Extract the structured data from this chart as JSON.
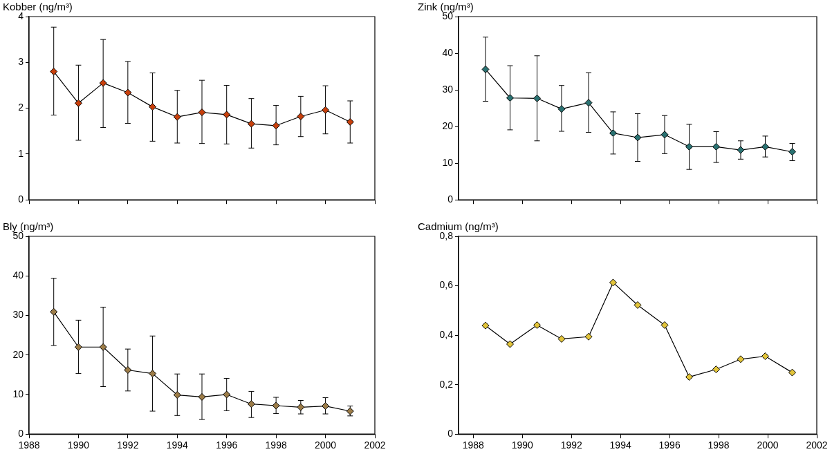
{
  "chart_data": [
    {
      "type": "line",
      "title": "Kobber (ng/m³)",
      "x": [
        1989,
        1990,
        1991,
        1992,
        1993,
        1994,
        1995,
        1996,
        1997,
        1998,
        1999,
        2000,
        2001
      ],
      "xlim": [
        1988,
        2002
      ],
      "xticks": [
        1988,
        1990,
        1992,
        1994,
        1996,
        1998,
        2000,
        2002
      ],
      "ylim": [
        0,
        4
      ],
      "yticks": [
        0,
        1,
        2,
        3,
        4
      ],
      "tick_labels": "y",
      "marker": "diamond",
      "line_style": "solid",
      "series": [
        {
          "color": "#c8400c",
          "values": [
            2.8,
            2.11,
            2.55,
            2.34,
            2.03,
            1.81,
            1.91,
            1.86,
            1.66,
            1.62,
            1.82,
            1.96,
            1.7
          ],
          "errors": [
            [
              1.85,
              3.77
            ],
            [
              1.3,
              2.94
            ],
            [
              1.58,
              3.5
            ],
            [
              1.67,
              3.02
            ],
            [
              1.28,
              2.77
            ],
            [
              1.24,
              2.39
            ],
            [
              1.23,
              2.61
            ],
            [
              1.22,
              2.5
            ],
            [
              1.13,
              2.21
            ],
            [
              1.2,
              2.06
            ],
            [
              1.38,
              2.26
            ],
            [
              1.44,
              2.49
            ],
            [
              1.24,
              2.16
            ]
          ]
        }
      ]
    },
    {
      "type": "line",
      "title": "Zink (ng/m³)",
      "x": [
        1988.5,
        1989.5,
        1990.6,
        1991.6,
        1992.7,
        1993.7,
        1994.7,
        1995.8,
        1996.8,
        1997.9,
        1998.9,
        1999.9,
        2001.0
      ],
      "xlim": [
        1987.4,
        2002
      ],
      "xticks": [
        1988,
        1990,
        1992,
        1994,
        1996,
        1998,
        2000,
        2002
      ],
      "ylim": [
        0,
        50
      ],
      "yticks": [
        0,
        10,
        20,
        30,
        40,
        50
      ],
      "tick_labels": "y",
      "marker": "diamond",
      "line_style": "solid",
      "series": [
        {
          "color": "#2a7272",
          "values": [
            35.6,
            27.8,
            27.7,
            24.8,
            26.5,
            18.2,
            17.0,
            17.8,
            14.5,
            14.5,
            13.6,
            14.5,
            13.1
          ],
          "errors": [
            [
              26.9,
              44.4
            ],
            [
              19.1,
              36.6
            ],
            [
              16.1,
              39.3
            ],
            [
              18.7,
              31.2
            ],
            [
              18.4,
              34.7
            ],
            [
              12.5,
              24.0
            ],
            [
              10.5,
              23.5
            ],
            [
              12.6,
              23.0
            ],
            [
              8.3,
              20.6
            ],
            [
              10.2,
              18.6
            ],
            [
              11.1,
              16.1
            ],
            [
              11.7,
              17.4
            ],
            [
              10.7,
              15.4
            ]
          ]
        }
      ]
    },
    {
      "type": "line",
      "title": "Bly (ng/m³)",
      "x": [
        1989,
        1990,
        1991,
        1992,
        1993,
        1994,
        1995,
        1996,
        1997,
        1998,
        1999,
        2000,
        2001
      ],
      "xlim": [
        1988,
        2002
      ],
      "xticks": [
        1988,
        1990,
        1992,
        1994,
        1996,
        1998,
        2000,
        2002
      ],
      "ylim": [
        0,
        50
      ],
      "yticks": [
        0,
        10,
        20,
        30,
        40,
        50
      ],
      "marker": "diamond",
      "line_style": "solid",
      "series": [
        {
          "color": "#9c7c48",
          "values": [
            30.9,
            22.0,
            22.0,
            16.2,
            15.3,
            9.9,
            9.4,
            10.0,
            7.6,
            7.2,
            6.8,
            7.1,
            5.8
          ],
          "errors": [
            [
              22.4,
              39.4
            ],
            [
              15.3,
              28.8
            ],
            [
              12.0,
              32.1
            ],
            [
              10.9,
              21.5
            ],
            [
              5.8,
              24.8
            ],
            [
              4.7,
              15.2
            ],
            [
              3.7,
              15.2
            ],
            [
              5.9,
              14.1
            ],
            [
              4.2,
              10.8
            ],
            [
              5.2,
              9.3
            ],
            [
              5.1,
              8.5
            ],
            [
              5.1,
              9.2
            ],
            [
              4.6,
              7.1
            ]
          ]
        }
      ]
    },
    {
      "type": "line",
      "title": "Cadmium (ng/m³)",
      "x": [
        1988.5,
        1989.5,
        1990.6,
        1991.6,
        1992.7,
        1993.7,
        1994.7,
        1995.8,
        1996.8,
        1997.9,
        1998.9,
        1999.9,
        2001.0
      ],
      "xlim": [
        1987.4,
        2002
      ],
      "xticks": [
        1988,
        1990,
        1992,
        1994,
        1996,
        1998,
        2000,
        2002
      ],
      "ylim": [
        0,
        0.8
      ],
      "yticks": [
        0,
        {
          "value": 0.2,
          "label": "0,2"
        },
        {
          "value": 0.4,
          "label": "0,4"
        },
        {
          "value": 0.6,
          "label": "0,6"
        },
        {
          "value": 0.8,
          "label": "0,8"
        }
      ],
      "marker": "diamond",
      "line_style": "solid",
      "series": [
        {
          "color": "#e2c43a",
          "values": [
            0.439,
            0.364,
            0.441,
            0.385,
            0.394,
            0.613,
            0.522,
            0.441,
            0.231,
            0.262,
            0.303,
            0.315,
            0.249
          ]
        }
      ]
    }
  ]
}
